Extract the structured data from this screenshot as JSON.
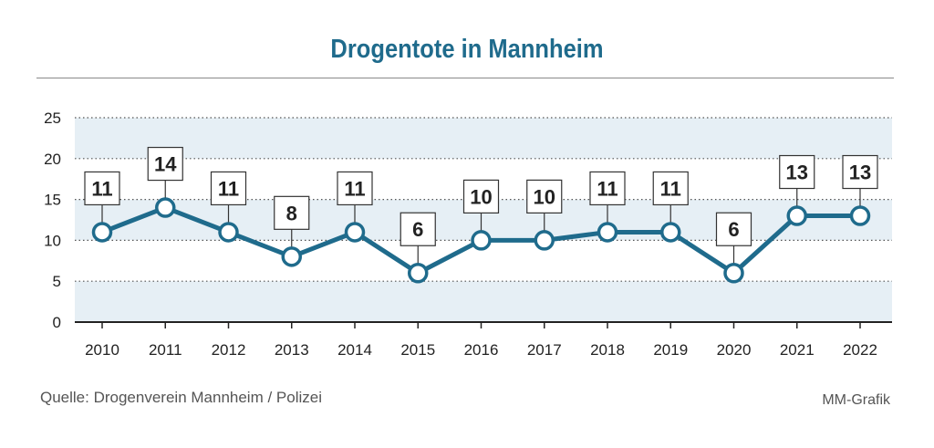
{
  "title": "Drogentote in Mannheim",
  "source": "Quelle: Drogenverein Mannheim / Polizei",
  "credit": "MM-Grafik",
  "colors": {
    "line": "#1f6b8c",
    "title": "#1f6b8c",
    "band": "#e6eff5",
    "grid": "#555555",
    "label_box_border": "#333333"
  },
  "chart_data": {
    "type": "line",
    "title": "Drogentote in Mannheim",
    "xlabel": "",
    "ylabel": "",
    "categories": [
      "2010",
      "2011",
      "2012",
      "2013",
      "2014",
      "2015",
      "2016",
      "2017",
      "2018",
      "2019",
      "2020",
      "2021",
      "2022"
    ],
    "series": [
      {
        "values": [
          11,
          14,
          11,
          8,
          11,
          6,
          10,
          10,
          11,
          11,
          6,
          13,
          13
        ]
      }
    ],
    "data_labels": [
      "11",
      "14",
      "11",
      "8",
      "11",
      "6",
      "10",
      "10",
      "11",
      "11",
      "6",
      "13",
      "13"
    ],
    "ylim": [
      0,
      25
    ],
    "yticks": [
      "0",
      "5",
      "10",
      "15",
      "20",
      "25"
    ],
    "grid": true,
    "grid_style": "dotted horizontal",
    "background": "alternating shaded bands"
  }
}
